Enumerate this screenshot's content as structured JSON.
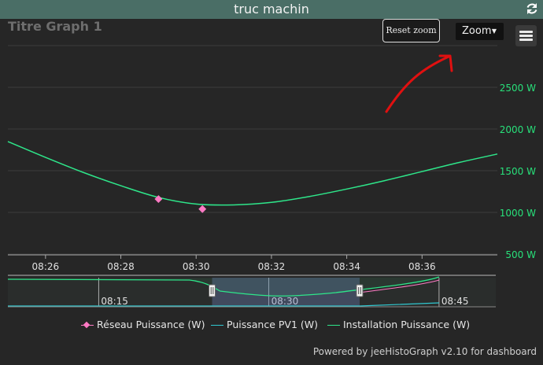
{
  "header": {
    "title": "truc machin",
    "refresh_icon": "refresh-icon"
  },
  "chart_header": {
    "title": "Titre Graph 1",
    "reset_zoom": "Reset zoom",
    "zoom_label": "Zoom",
    "menu_icon": "hamburger-menu-icon"
  },
  "colors": {
    "installation": "#2ee68a",
    "pv1": "#30c8d0",
    "reseau": "#ff7ac4",
    "axis_label": "#28e07a",
    "annotation": "#e01010"
  },
  "chart_data": {
    "type": "line",
    "title": "Titre Graph 1",
    "x_tick_labels": [
      "08:26",
      "08:28",
      "08:30",
      "08:32",
      "08:34",
      "08:36"
    ],
    "y_tick_labels": [
      "500 W",
      "1000 W",
      "1500 W",
      "2000 W",
      "2500 W"
    ],
    "xlim": [
      "08:25",
      "08:38"
    ],
    "ylim": [
      500,
      3000
    ],
    "y_ticks": [
      500,
      1000,
      1500,
      2000,
      2500
    ],
    "grid": true,
    "legend_position": "bottom",
    "series": [
      {
        "name": "Réseau Puissance (W)",
        "marker": "diamond",
        "points": [
          [
            "08:29:00",
            1160
          ],
          [
            "08:30:10",
            1040
          ]
        ]
      },
      {
        "name": "Puissance PV1 (W)",
        "points": []
      },
      {
        "name": "Installation Puissance (W)",
        "points": [
          [
            "08:25:00",
            1850
          ],
          [
            "08:26:00",
            1660
          ],
          [
            "08:27:00",
            1480
          ],
          [
            "08:28:00",
            1320
          ],
          [
            "08:29:00",
            1180
          ],
          [
            "08:30:00",
            1100
          ],
          [
            "08:31:00",
            1090
          ],
          [
            "08:32:00",
            1120
          ],
          [
            "08:33:00",
            1190
          ],
          [
            "08:34:00",
            1280
          ],
          [
            "08:35:00",
            1380
          ],
          [
            "08:36:00",
            1490
          ],
          [
            "08:37:00",
            1600
          ],
          [
            "08:38:00",
            1700
          ]
        ]
      }
    ],
    "navigator": {
      "tick_labels": [
        "08:15",
        "08:30",
        "08:45"
      ],
      "selection": [
        "08:25",
        "08:38"
      ]
    }
  },
  "legend": [
    {
      "label": "Réseau Puissance (W)",
      "color": "#ff7ac4",
      "marker": "diamond"
    },
    {
      "label": "Puissance PV1 (W)",
      "color": "#30c8d0"
    },
    {
      "label": "Installation Puissance (W)",
      "color": "#2ee68a"
    }
  ],
  "credit": "Powered by jeeHistoGraph v2.10 for dashboard"
}
